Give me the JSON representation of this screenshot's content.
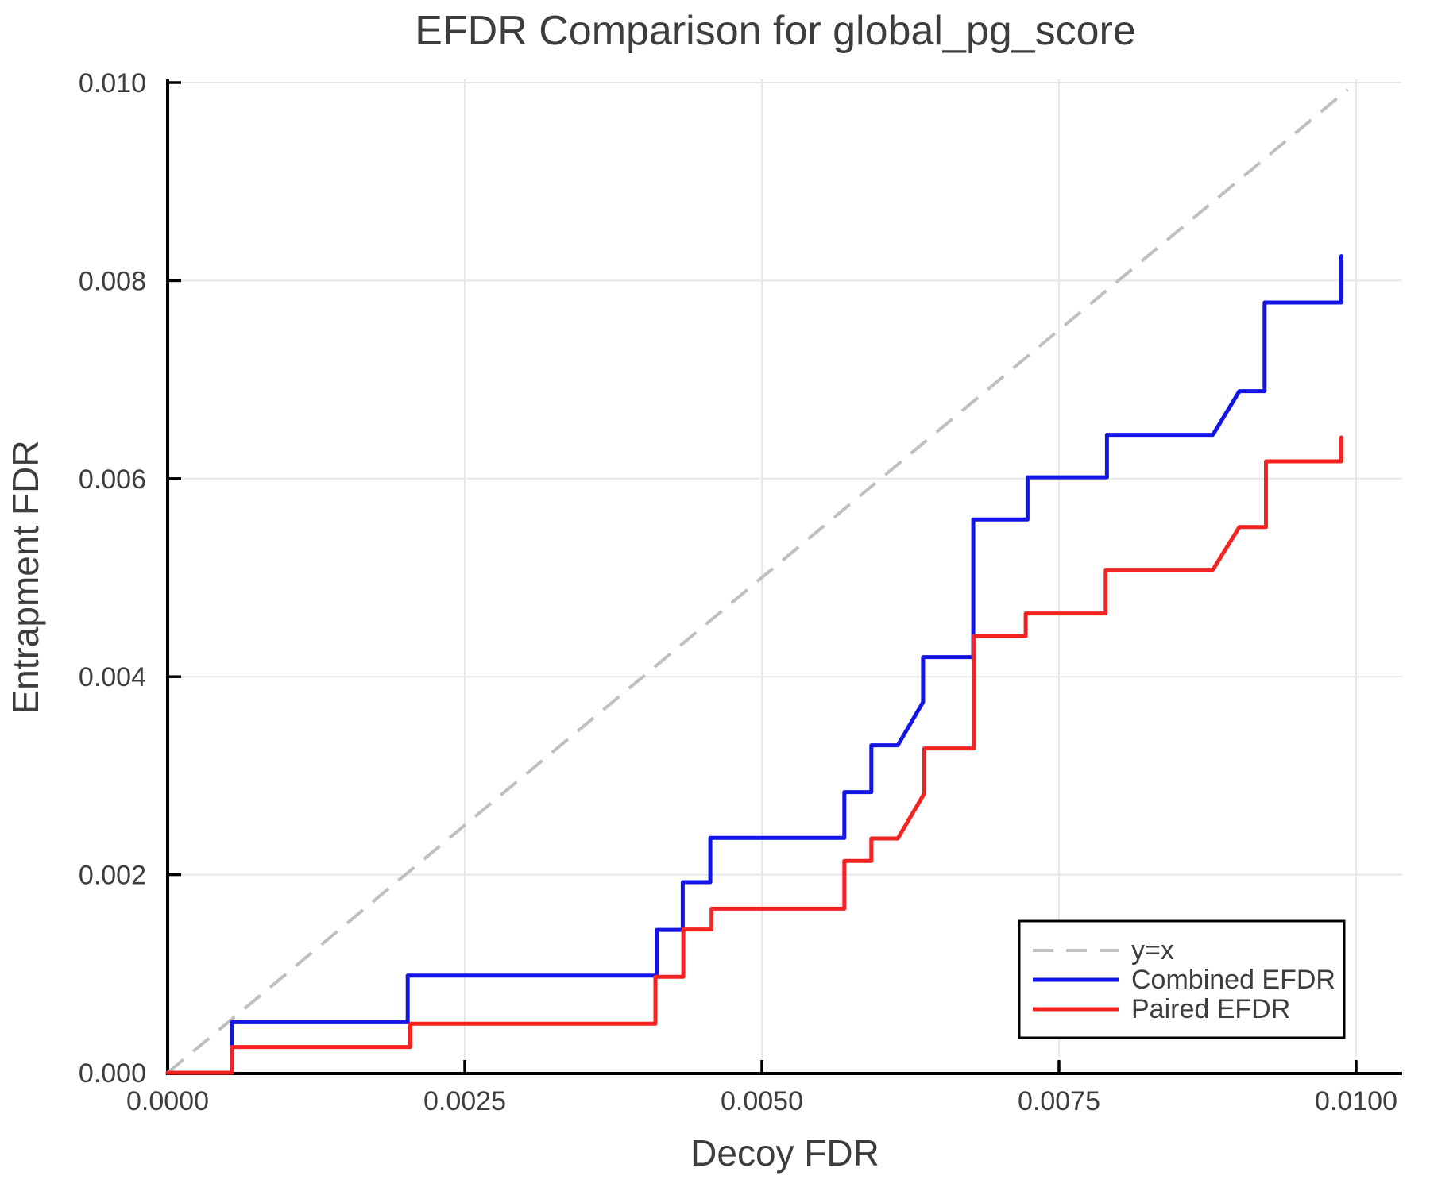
{
  "figure": {
    "title": "EFDR Comparison for global_pg_score",
    "xlabel": "Decoy FDR",
    "ylabel": "Entrapment FDR"
  },
  "axes": {
    "x": {
      "tick_labels": [
        "0.0000",
        "0.0025",
        "0.0050",
        "0.0075",
        "0.0100"
      ],
      "tick_values": [
        0,
        0.0025,
        0.005,
        0.0075,
        0.01
      ],
      "range": [
        0,
        0.0104
      ]
    },
    "y": {
      "tick_labels": [
        "0.000",
        "0.002",
        "0.004",
        "0.006",
        "0.008",
        "0.010"
      ],
      "tick_values": [
        0,
        0.002,
        0.004,
        0.006,
        0.008,
        0.01
      ],
      "range": [
        0,
        0.01002
      ]
    }
  },
  "colors": {
    "combined": "#1414E6",
    "paired": "#F52222",
    "identity": "#BFBFBF",
    "grid": "#E8E8E8",
    "spine": "#000000",
    "text": "#3D3D3D",
    "legend_bg": "#FFFFFF",
    "legend_border": "#000000"
  },
  "chart_data": {
    "type": "line",
    "title": "EFDR Comparison for global_pg_score",
    "xlabel": "Decoy FDR",
    "ylabel": "Entrapment FDR",
    "xlim": [
      0,
      0.0104
    ],
    "ylim": [
      0,
      0.01002
    ],
    "grid": true,
    "legend_position": "lower right",
    "legend": [
      "y=x",
      "Combined EFDR",
      "Paired EFDR"
    ],
    "series": [
      {
        "name": "y=x",
        "style": "dashed",
        "color": "#BFBFBF",
        "width": 4,
        "points": [
          [
            0,
            0
          ],
          [
            0.00993,
            0.00993
          ]
        ]
      },
      {
        "name": "Combined EFDR",
        "style": "solid",
        "color": "#1414E6",
        "width": 5,
        "points": [
          [
            0,
            0
          ],
          [
            0.00054,
            0
          ],
          [
            0.00054,
            0.00051
          ],
          [
            0.00202,
            0.00051
          ],
          [
            0.00202,
            0.00098
          ],
          [
            0.004116,
            0.00098
          ],
          [
            0.004116,
            0.001443
          ],
          [
            0.004334,
            0.001443
          ],
          [
            0.004334,
            0.001925
          ],
          [
            0.004566,
            0.001925
          ],
          [
            0.004566,
            0.002371
          ],
          [
            0.005694,
            0.002371
          ],
          [
            0.005694,
            0.002834
          ],
          [
            0.005921,
            0.002834
          ],
          [
            0.005921,
            0.003307
          ],
          [
            0.006144,
            0.003307
          ],
          [
            0.006356,
            0.003743
          ],
          [
            0.006356,
            0.004197
          ],
          [
            0.006779,
            0.004197
          ],
          [
            0.006779,
            0.005587
          ],
          [
            0.007235,
            0.005587
          ],
          [
            0.007235,
            0.006014
          ],
          [
            0.007904,
            0.006014
          ],
          [
            0.007904,
            0.006443
          ],
          [
            0.008795,
            0.006443
          ],
          [
            0.009018,
            0.006884
          ],
          [
            0.00923,
            0.006884
          ],
          [
            0.00923,
            0.007779
          ],
          [
            0.009876,
            0.007779
          ],
          [
            0.009876,
            0.008247
          ]
        ]
      },
      {
        "name": "Paired EFDR",
        "style": "solid",
        "color": "#F52222",
        "width": 5,
        "points": [
          [
            0,
            0
          ],
          [
            0.00054,
            0
          ],
          [
            0.00054,
            0.00026
          ],
          [
            0.002042,
            0.00026
          ],
          [
            0.002042,
            0.000495
          ],
          [
            0.004104,
            0.000495
          ],
          [
            0.004104,
            0.000968
          ],
          [
            0.004339,
            0.000968
          ],
          [
            0.004339,
            0.001447
          ],
          [
            0.004577,
            0.001447
          ],
          [
            0.004577,
            0.001657
          ],
          [
            0.005694,
            0.001657
          ],
          [
            0.005694,
            0.002139
          ],
          [
            0.005921,
            0.002139
          ],
          [
            0.005921,
            0.002366
          ],
          [
            0.006144,
            0.002366
          ],
          [
            0.006367,
            0.002821
          ],
          [
            0.006367,
            0.003275
          ],
          [
            0.006784,
            0.003275
          ],
          [
            0.006784,
            0.00441
          ],
          [
            0.00722,
            0.00441
          ],
          [
            0.00722,
            0.004638
          ],
          [
            0.007893,
            0.004638
          ],
          [
            0.007893,
            0.005079
          ],
          [
            0.008795,
            0.005079
          ],
          [
            0.009018,
            0.005512
          ],
          [
            0.009241,
            0.005512
          ],
          [
            0.009241,
            0.006175
          ],
          [
            0.009876,
            0.006175
          ],
          [
            0.009876,
            0.006415
          ]
        ]
      }
    ]
  }
}
